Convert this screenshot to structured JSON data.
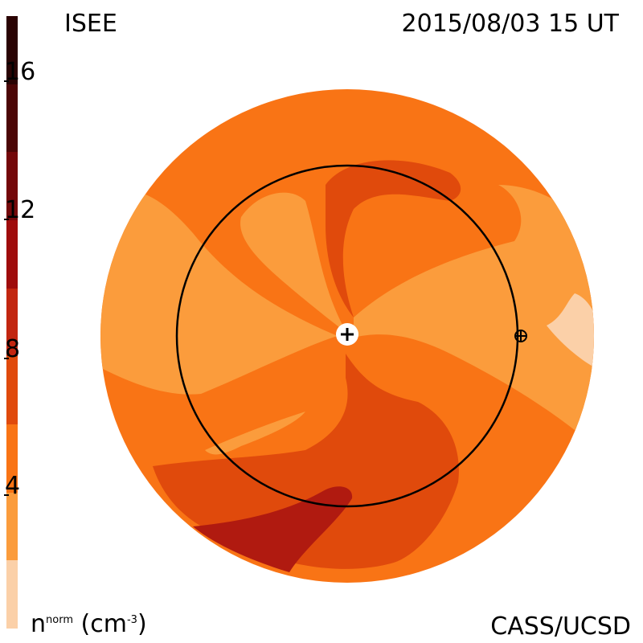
{
  "header": {
    "left_label": "ISEE",
    "date_label": "2015/08/03 15 UT"
  },
  "footer": {
    "units_base": "n",
    "units_super": "norm",
    "units_rest": " (cm",
    "units_exp": "-3",
    "units_close": ")",
    "credit": "CASS/UCSD"
  },
  "colorbar": {
    "ticks": [
      "16",
      "12",
      "8",
      "4"
    ],
    "tick_values": [
      16,
      12,
      8,
      4
    ],
    "range": [
      0,
      18
    ],
    "bands": [
      {
        "from": 0,
        "to": 2,
        "color": "#fbd0a8"
      },
      {
        "from": 2,
        "to": 4,
        "color": "#fb9c3c"
      },
      {
        "from": 4,
        "to": 6,
        "color": "#f97415"
      },
      {
        "from": 6,
        "to": 8,
        "color": "#e04a0c"
      },
      {
        "from": 8,
        "to": 10,
        "color": "#c22610"
      },
      {
        "from": 10,
        "to": 12,
        "color": "#9f0c0c"
      },
      {
        "from": 12,
        "to": 14,
        "color": "#74080a"
      },
      {
        "from": 14,
        "to": 16,
        "color": "#4c0606"
      },
      {
        "from": 16,
        "to": 18,
        "color": "#2a0303"
      }
    ]
  },
  "map": {
    "sun_symbol": "sun-icon",
    "earth_symbol": "earth-icon",
    "orbit": "earth-orbit-1AU"
  }
}
